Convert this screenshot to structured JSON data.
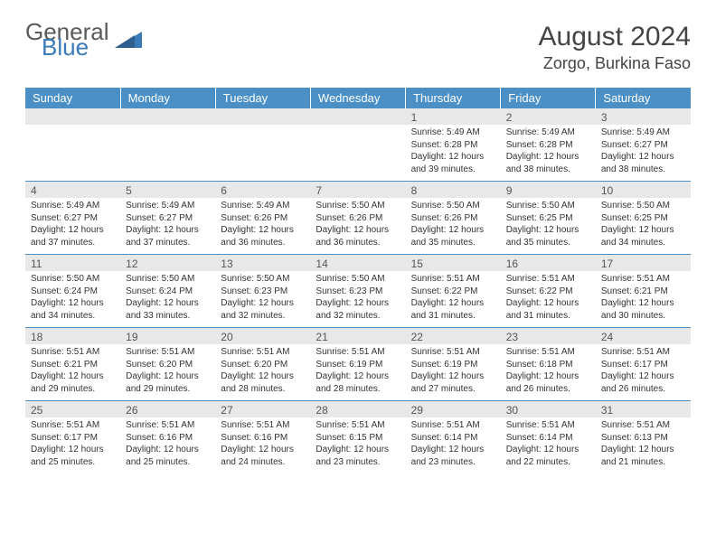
{
  "logo": {
    "part1": "General",
    "part2": "Blue"
  },
  "title": "August 2024",
  "location": "Zorgo, Burkina Faso",
  "colors": {
    "header_bg": "#4a90c7",
    "header_text": "#ffffff",
    "daynum_bg": "#e8e8e8",
    "border": "#4a90c7",
    "logo_blue": "#3a7ab8",
    "text": "#333333"
  },
  "weekdays": [
    "Sunday",
    "Monday",
    "Tuesday",
    "Wednesday",
    "Thursday",
    "Friday",
    "Saturday"
  ],
  "weeks": [
    [
      {
        "n": "",
        "sr": "",
        "ss": "",
        "dl": ""
      },
      {
        "n": "",
        "sr": "",
        "ss": "",
        "dl": ""
      },
      {
        "n": "",
        "sr": "",
        "ss": "",
        "dl": ""
      },
      {
        "n": "",
        "sr": "",
        "ss": "",
        "dl": ""
      },
      {
        "n": "1",
        "sr": "Sunrise: 5:49 AM",
        "ss": "Sunset: 6:28 PM",
        "dl": "Daylight: 12 hours and 39 minutes."
      },
      {
        "n": "2",
        "sr": "Sunrise: 5:49 AM",
        "ss": "Sunset: 6:28 PM",
        "dl": "Daylight: 12 hours and 38 minutes."
      },
      {
        "n": "3",
        "sr": "Sunrise: 5:49 AM",
        "ss": "Sunset: 6:27 PM",
        "dl": "Daylight: 12 hours and 38 minutes."
      }
    ],
    [
      {
        "n": "4",
        "sr": "Sunrise: 5:49 AM",
        "ss": "Sunset: 6:27 PM",
        "dl": "Daylight: 12 hours and 37 minutes."
      },
      {
        "n": "5",
        "sr": "Sunrise: 5:49 AM",
        "ss": "Sunset: 6:27 PM",
        "dl": "Daylight: 12 hours and 37 minutes."
      },
      {
        "n": "6",
        "sr": "Sunrise: 5:49 AM",
        "ss": "Sunset: 6:26 PM",
        "dl": "Daylight: 12 hours and 36 minutes."
      },
      {
        "n": "7",
        "sr": "Sunrise: 5:50 AM",
        "ss": "Sunset: 6:26 PM",
        "dl": "Daylight: 12 hours and 36 minutes."
      },
      {
        "n": "8",
        "sr": "Sunrise: 5:50 AM",
        "ss": "Sunset: 6:26 PM",
        "dl": "Daylight: 12 hours and 35 minutes."
      },
      {
        "n": "9",
        "sr": "Sunrise: 5:50 AM",
        "ss": "Sunset: 6:25 PM",
        "dl": "Daylight: 12 hours and 35 minutes."
      },
      {
        "n": "10",
        "sr": "Sunrise: 5:50 AM",
        "ss": "Sunset: 6:25 PM",
        "dl": "Daylight: 12 hours and 34 minutes."
      }
    ],
    [
      {
        "n": "11",
        "sr": "Sunrise: 5:50 AM",
        "ss": "Sunset: 6:24 PM",
        "dl": "Daylight: 12 hours and 34 minutes."
      },
      {
        "n": "12",
        "sr": "Sunrise: 5:50 AM",
        "ss": "Sunset: 6:24 PM",
        "dl": "Daylight: 12 hours and 33 minutes."
      },
      {
        "n": "13",
        "sr": "Sunrise: 5:50 AM",
        "ss": "Sunset: 6:23 PM",
        "dl": "Daylight: 12 hours and 32 minutes."
      },
      {
        "n": "14",
        "sr": "Sunrise: 5:50 AM",
        "ss": "Sunset: 6:23 PM",
        "dl": "Daylight: 12 hours and 32 minutes."
      },
      {
        "n": "15",
        "sr": "Sunrise: 5:51 AM",
        "ss": "Sunset: 6:22 PM",
        "dl": "Daylight: 12 hours and 31 minutes."
      },
      {
        "n": "16",
        "sr": "Sunrise: 5:51 AM",
        "ss": "Sunset: 6:22 PM",
        "dl": "Daylight: 12 hours and 31 minutes."
      },
      {
        "n": "17",
        "sr": "Sunrise: 5:51 AM",
        "ss": "Sunset: 6:21 PM",
        "dl": "Daylight: 12 hours and 30 minutes."
      }
    ],
    [
      {
        "n": "18",
        "sr": "Sunrise: 5:51 AM",
        "ss": "Sunset: 6:21 PM",
        "dl": "Daylight: 12 hours and 29 minutes."
      },
      {
        "n": "19",
        "sr": "Sunrise: 5:51 AM",
        "ss": "Sunset: 6:20 PM",
        "dl": "Daylight: 12 hours and 29 minutes."
      },
      {
        "n": "20",
        "sr": "Sunrise: 5:51 AM",
        "ss": "Sunset: 6:20 PM",
        "dl": "Daylight: 12 hours and 28 minutes."
      },
      {
        "n": "21",
        "sr": "Sunrise: 5:51 AM",
        "ss": "Sunset: 6:19 PM",
        "dl": "Daylight: 12 hours and 28 minutes."
      },
      {
        "n": "22",
        "sr": "Sunrise: 5:51 AM",
        "ss": "Sunset: 6:19 PM",
        "dl": "Daylight: 12 hours and 27 minutes."
      },
      {
        "n": "23",
        "sr": "Sunrise: 5:51 AM",
        "ss": "Sunset: 6:18 PM",
        "dl": "Daylight: 12 hours and 26 minutes."
      },
      {
        "n": "24",
        "sr": "Sunrise: 5:51 AM",
        "ss": "Sunset: 6:17 PM",
        "dl": "Daylight: 12 hours and 26 minutes."
      }
    ],
    [
      {
        "n": "25",
        "sr": "Sunrise: 5:51 AM",
        "ss": "Sunset: 6:17 PM",
        "dl": "Daylight: 12 hours and 25 minutes."
      },
      {
        "n": "26",
        "sr": "Sunrise: 5:51 AM",
        "ss": "Sunset: 6:16 PM",
        "dl": "Daylight: 12 hours and 25 minutes."
      },
      {
        "n": "27",
        "sr": "Sunrise: 5:51 AM",
        "ss": "Sunset: 6:16 PM",
        "dl": "Daylight: 12 hours and 24 minutes."
      },
      {
        "n": "28",
        "sr": "Sunrise: 5:51 AM",
        "ss": "Sunset: 6:15 PM",
        "dl": "Daylight: 12 hours and 23 minutes."
      },
      {
        "n": "29",
        "sr": "Sunrise: 5:51 AM",
        "ss": "Sunset: 6:14 PM",
        "dl": "Daylight: 12 hours and 23 minutes."
      },
      {
        "n": "30",
        "sr": "Sunrise: 5:51 AM",
        "ss": "Sunset: 6:14 PM",
        "dl": "Daylight: 12 hours and 22 minutes."
      },
      {
        "n": "31",
        "sr": "Sunrise: 5:51 AM",
        "ss": "Sunset: 6:13 PM",
        "dl": "Daylight: 12 hours and 21 minutes."
      }
    ]
  ]
}
